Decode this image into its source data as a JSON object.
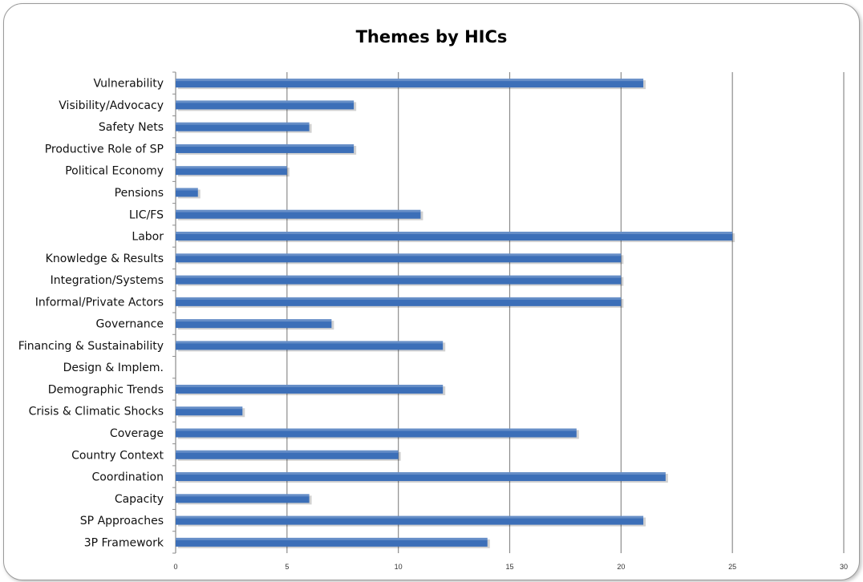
{
  "chart_data": {
    "type": "bar",
    "orientation": "horizontal",
    "title": "Themes by HICs",
    "xlabel": "",
    "ylabel": "",
    "xlim": [
      0,
      30
    ],
    "x_ticks": [
      "0",
      "5",
      "10",
      "15",
      "20",
      "25",
      "30"
    ],
    "grid": true,
    "legend": "none",
    "bar_color": "#3c6fb8",
    "categories": [
      "Vulnerability",
      "Visibility/Advocacy",
      "Safety Nets",
      "Productive Role of SP",
      "Political Economy",
      "Pensions",
      "LIC/FS",
      "Labor",
      "Knowledge & Results",
      "Integration/Systems",
      "Informal/Private Actors",
      "Governance",
      "Financing & Sustainability",
      "Design & Implem.",
      "Demographic Trends",
      "Crisis & Climatic Shocks",
      "Coverage",
      "Country Context",
      "Coordination",
      "Capacity",
      "SP Approaches",
      "3P Framework"
    ],
    "values": [
      21,
      8,
      6,
      8,
      5,
      1,
      11,
      25,
      20,
      20,
      20,
      7,
      12,
      0,
      12,
      3,
      18,
      10,
      22,
      6,
      21,
      14
    ]
  }
}
